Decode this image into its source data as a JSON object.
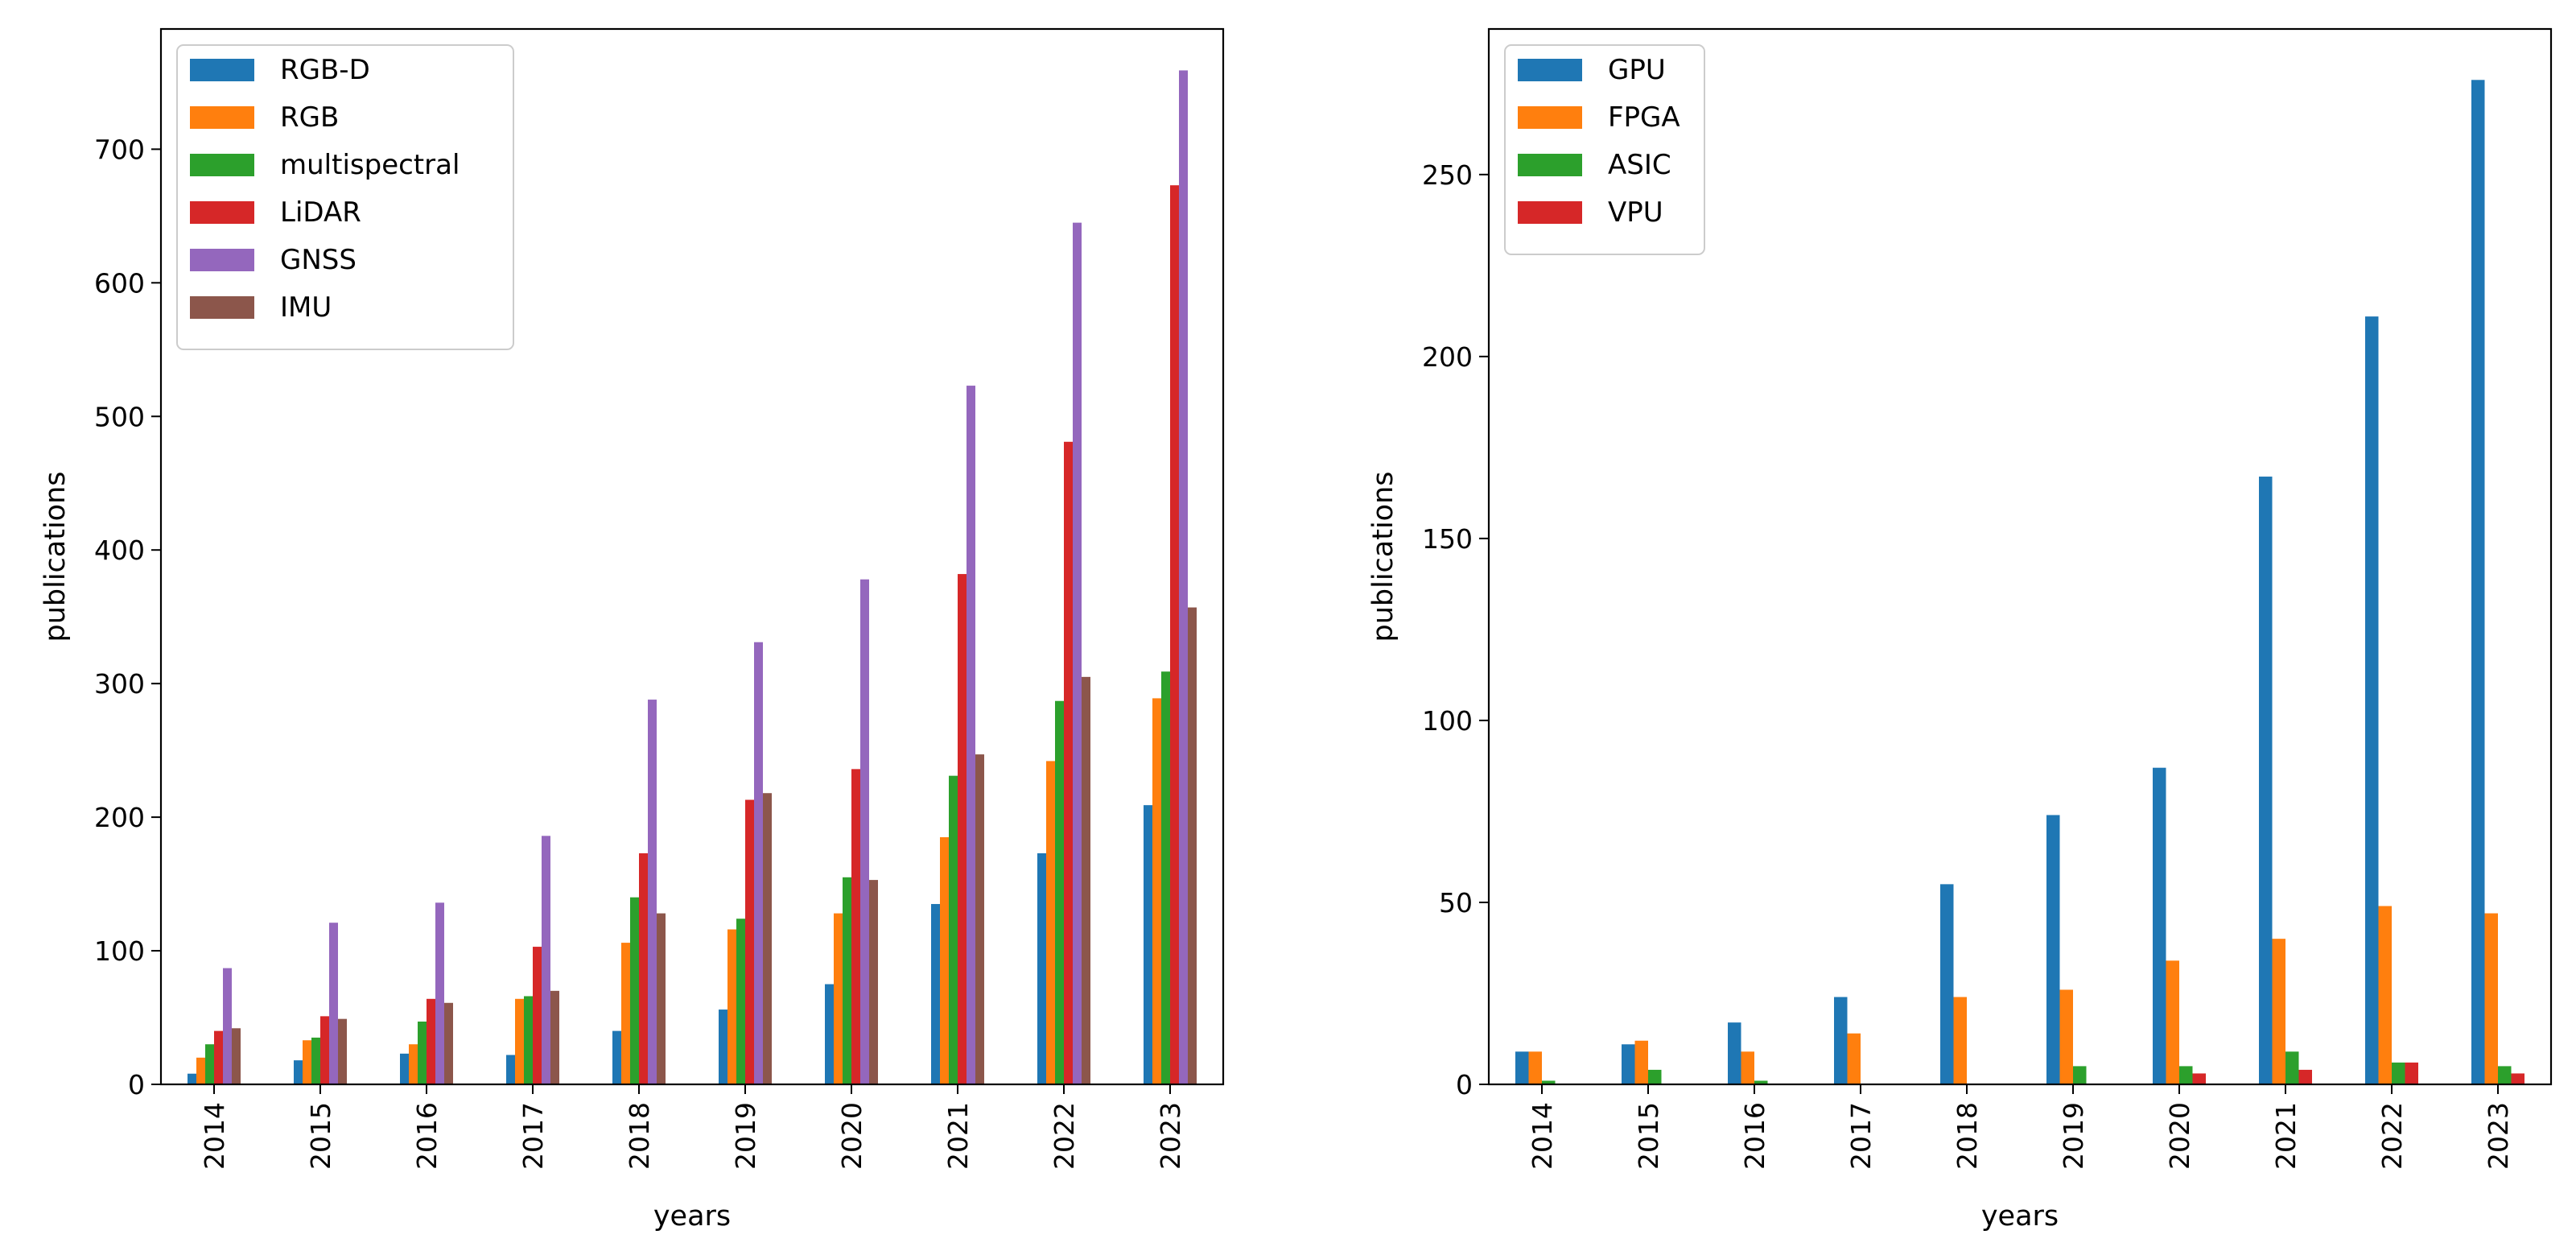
{
  "chart_data": [
    {
      "type": "bar",
      "title": "",
      "xlabel": "years",
      "ylabel": "publications",
      "categories": [
        "2014",
        "2015",
        "2016",
        "2017",
        "2018",
        "2019",
        "2020",
        "2021",
        "2022",
        "2023"
      ],
      "ylim": [
        0,
        790
      ],
      "yticks": [
        0,
        100,
        200,
        300,
        400,
        500,
        600,
        700
      ],
      "legend_position": "top-left",
      "series": [
        {
          "name": "RGB-D",
          "color": "#1f77b4",
          "values": [
            8,
            18,
            23,
            22,
            40,
            56,
            75,
            135,
            173,
            209
          ]
        },
        {
          "name": "RGB",
          "color": "#ff7f0e",
          "values": [
            20,
            33,
            30,
            64,
            106,
            116,
            128,
            185,
            242,
            289
          ]
        },
        {
          "name": "multispectral",
          "color": "#2ca02c",
          "values": [
            30,
            35,
            47,
            66,
            140,
            124,
            155,
            231,
            287,
            309
          ]
        },
        {
          "name": "LiDAR",
          "color": "#d62728",
          "values": [
            40,
            51,
            64,
            103,
            173,
            213,
            236,
            382,
            481,
            673
          ]
        },
        {
          "name": "GNSS",
          "color": "#9467bd",
          "values": [
            87,
            121,
            136,
            186,
            288,
            331,
            378,
            523,
            645,
            759
          ]
        },
        {
          "name": "IMU",
          "color": "#8c564b",
          "values": [
            42,
            49,
            61,
            70,
            128,
            218,
            153,
            247,
            305,
            357
          ]
        }
      ]
    },
    {
      "type": "bar",
      "title": "",
      "xlabel": "years",
      "ylabel": "publications",
      "categories": [
        "2014",
        "2015",
        "2016",
        "2017",
        "2018",
        "2019",
        "2020",
        "2021",
        "2022",
        "2023"
      ],
      "ylim": [
        0,
        290
      ],
      "yticks": [
        0,
        50,
        100,
        150,
        200,
        250
      ],
      "legend_position": "top-left",
      "series": [
        {
          "name": "GPU",
          "color": "#1f77b4",
          "values": [
            9,
            11,
            17,
            24,
            55,
            74,
            87,
            167,
            211,
            276
          ]
        },
        {
          "name": "FPGA",
          "color": "#ff7f0e",
          "values": [
            9,
            12,
            9,
            14,
            24,
            26,
            34,
            40,
            49,
            47
          ]
        },
        {
          "name": "ASIC",
          "color": "#2ca02c",
          "values": [
            1,
            4,
            1,
            0,
            0,
            5,
            5,
            9,
            6,
            5
          ]
        },
        {
          "name": "VPU",
          "color": "#d62728",
          "values": [
            0,
            0,
            0,
            0,
            0,
            0,
            3,
            4,
            6,
            3
          ]
        }
      ]
    }
  ]
}
